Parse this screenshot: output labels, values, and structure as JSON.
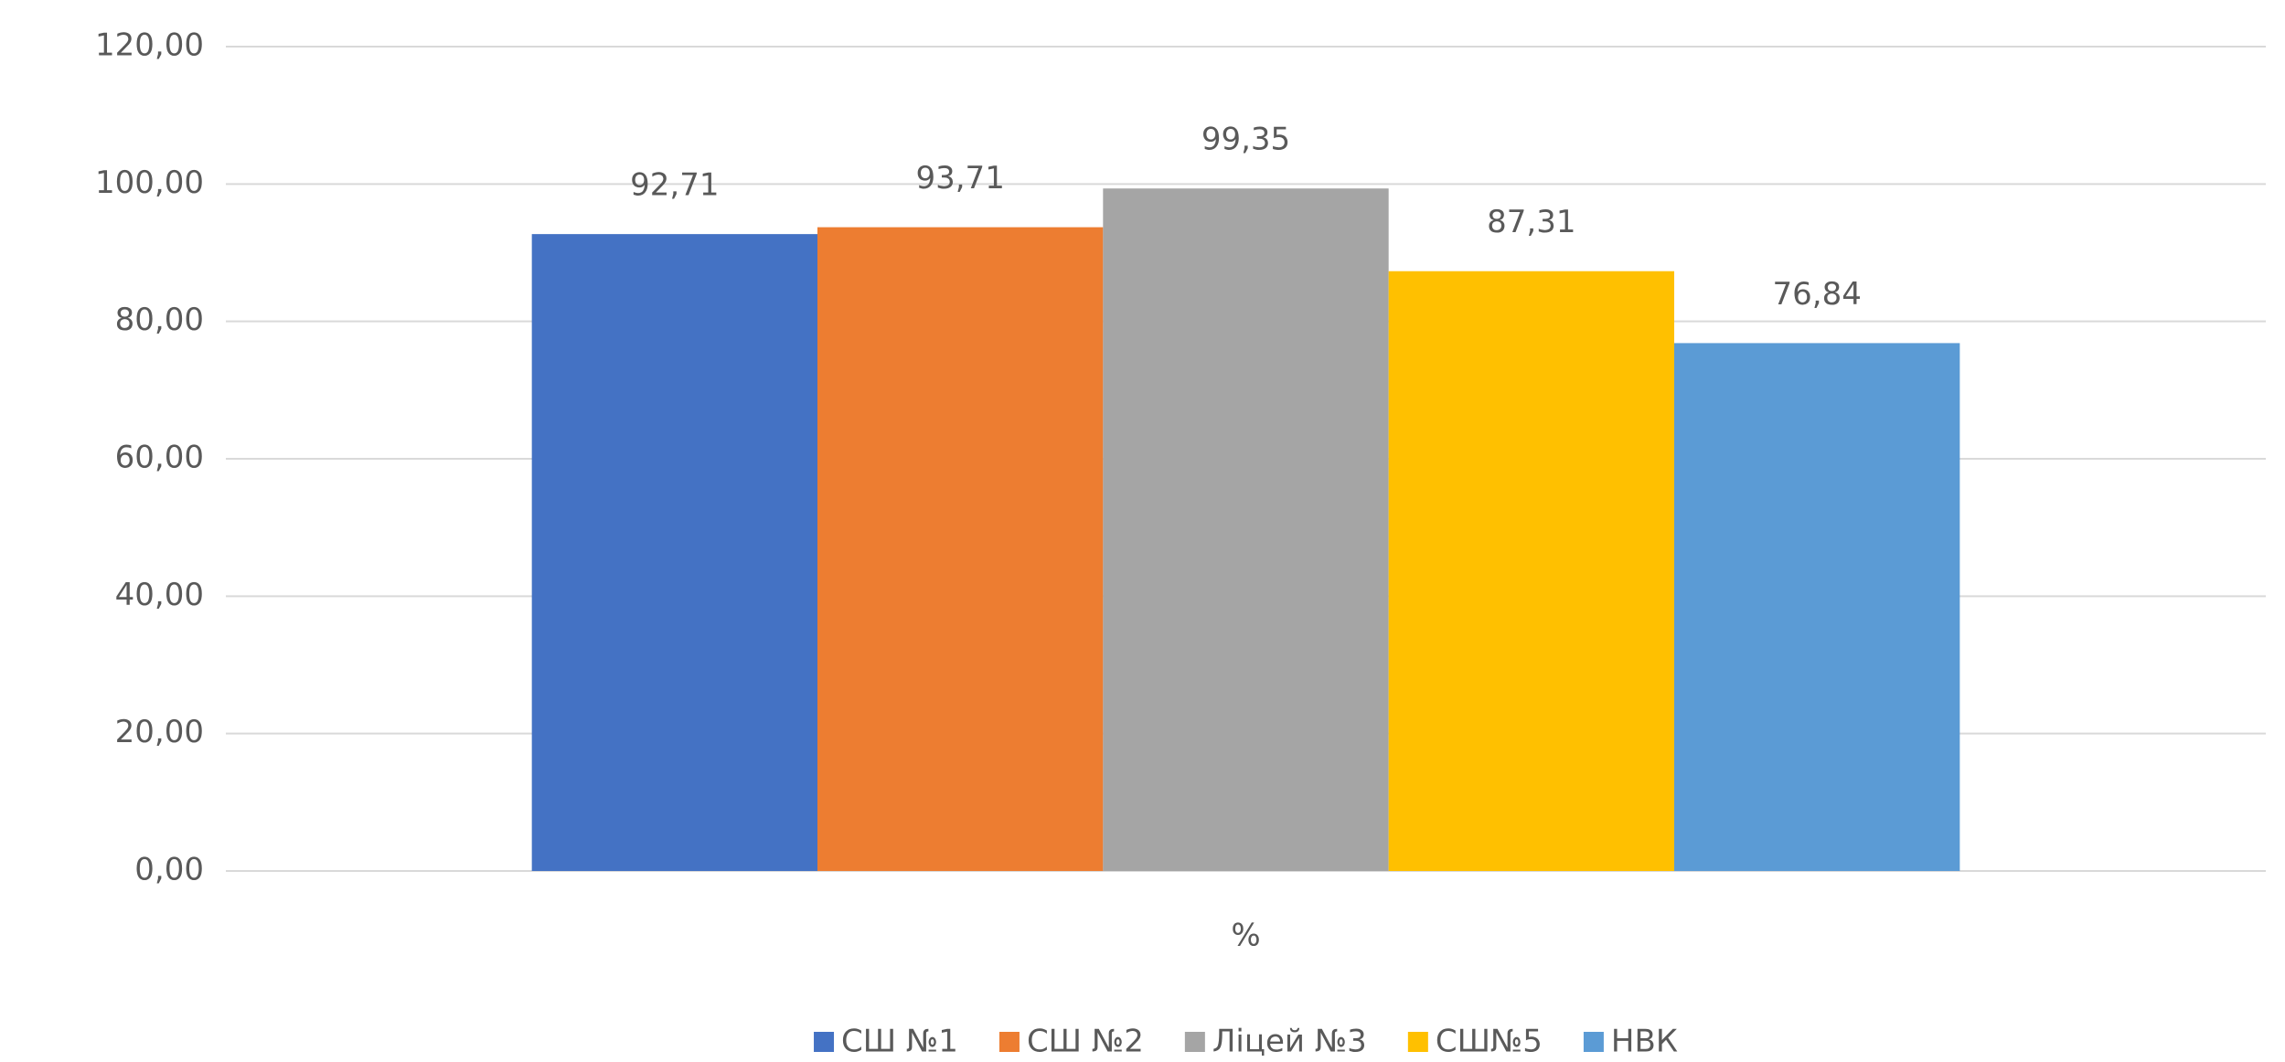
{
  "chart_data": {
    "type": "bar",
    "categories": [
      "%"
    ],
    "series": [
      {
        "name": "СШ №1",
        "color": "#4472c4",
        "values": [
          92.71
        ],
        "value_labels": [
          "92,71"
        ]
      },
      {
        "name": "СШ №2",
        "color": "#ed7d31",
        "values": [
          93.71
        ],
        "value_labels": [
          "93,71"
        ]
      },
      {
        "name": "Ліцей №3",
        "color": "#a5a5a5",
        "values": [
          99.35
        ],
        "value_labels": [
          "99,35"
        ]
      },
      {
        "name": "СШ№5",
        "color": "#ffc000",
        "values": [
          87.31
        ],
        "value_labels": [
          "87,31"
        ]
      },
      {
        "name": "НВК",
        "color": "#5b9bd5",
        "values": [
          76.84
        ],
        "value_labels": [
          "76,84"
        ]
      }
    ],
    "ylim": [
      0,
      120
    ],
    "yticks": [
      {
        "value": 0,
        "label": "0,00"
      },
      {
        "value": 20,
        "label": "20,00"
      },
      {
        "value": 40,
        "label": "40,00"
      },
      {
        "value": 60,
        "label": "60,00"
      },
      {
        "value": 80,
        "label": "80,00"
      },
      {
        "value": 100,
        "label": "100,00"
      },
      {
        "value": 120,
        "label": "120,00"
      }
    ],
    "grid": true,
    "legend": "bottom"
  }
}
